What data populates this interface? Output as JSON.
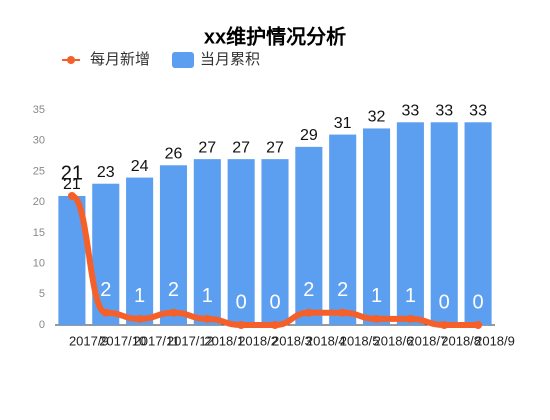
{
  "chart_data": {
    "type": "bar",
    "title": "xx维护情况分析",
    "categories": [
      "2017/9",
      "2017/10",
      "2017/11",
      "2017/12",
      "2018/1",
      "2018/2",
      "2018/3",
      "2018/4",
      "2018/5",
      "2018/6",
      "2018/7",
      "2018/8",
      "2018/9"
    ],
    "series": [
      {
        "name": "每月新增",
        "type": "line",
        "color": "#f5602a",
        "values": [
          21,
          2,
          1,
          2,
          1,
          0,
          0,
          2,
          2,
          1,
          1,
          0,
          0
        ]
      },
      {
        "name": "当月累积",
        "type": "bar",
        "color": "#5c9ef0",
        "values": [
          21,
          23,
          24,
          26,
          27,
          27,
          27,
          29,
          31,
          32,
          33,
          33,
          33
        ]
      }
    ],
    "ylim": [
      0,
      35
    ],
    "yticks": [
      0,
      5,
      10,
      15,
      20,
      25,
      30,
      35
    ],
    "grid": false,
    "legend": "top"
  }
}
